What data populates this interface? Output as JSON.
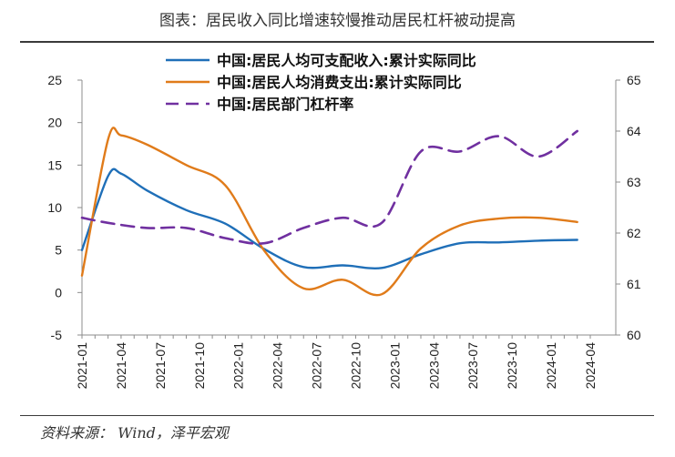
{
  "figure_title": "图表：居民收入同比增速较慢推动居民杠杆被动提高",
  "source_note": "资料来源： Wind，泽平宏观",
  "chart_data": {
    "type": "line",
    "title": "图表：居民收入同比增速较慢推动居民杠杆被动提高",
    "x": [
      "2021-01",
      "2021-02",
      "2021-03",
      "2021-04",
      "2021-05",
      "2021-06",
      "2021-07",
      "2021-08",
      "2021-09",
      "2021-10",
      "2021-11",
      "2021-12",
      "2022-01",
      "2022-02",
      "2022-03",
      "2022-04",
      "2022-05",
      "2022-06",
      "2022-07",
      "2022-08",
      "2022-09",
      "2022-10",
      "2022-11",
      "2022-12",
      "2023-01",
      "2023-02",
      "2023-03",
      "2023-04",
      "2023-05",
      "2023-06",
      "2023-07",
      "2023-08",
      "2023-09",
      "2023-10",
      "2023-11",
      "2023-12",
      "2024-01",
      "2024-02",
      "2024-03",
      "2024-04"
    ],
    "x_tick_labels": [
      "2021-01",
      "2021-04",
      "2021-07",
      "2021-10",
      "2022-01",
      "2022-04",
      "2022-07",
      "2022-10",
      "2023-01",
      "2023-04",
      "2023-07",
      "2023-10",
      "2024-01",
      "2024-04"
    ],
    "left_axis": {
      "ylim": [
        -5,
        25
      ],
      "ticks": [
        -5,
        0,
        5,
        10,
        15,
        20,
        25
      ]
    },
    "right_axis": {
      "ylim": [
        60,
        65
      ],
      "ticks": [
        60,
        61,
        62,
        63,
        64,
        65
      ]
    },
    "legend_position": "top-center",
    "grid": false,
    "series": [
      {
        "name": "中国:居民人均可支配收入:累计实际同比",
        "axis": "left",
        "color": "#1f6fb8",
        "dash": "solid",
        "points": [
          [
            "2021-01",
            5.0
          ],
          [
            "2021-03",
            13.7
          ],
          [
            "2021-04",
            14.0
          ],
          [
            "2021-06",
            12.0
          ],
          [
            "2021-09",
            9.7
          ],
          [
            "2021-12",
            8.1
          ],
          [
            "2022-03",
            5.1
          ],
          [
            "2022-06",
            3.0
          ],
          [
            "2022-09",
            3.2
          ],
          [
            "2022-12",
            2.9
          ],
          [
            "2023-03",
            4.5
          ],
          [
            "2023-06",
            5.8
          ],
          [
            "2023-09",
            5.9
          ],
          [
            "2023-12",
            6.1
          ],
          [
            "2024-03",
            6.2
          ]
        ]
      },
      {
        "name": "中国:居民人均消费支出:累计实际同比",
        "axis": "left",
        "color": "#e07b1a",
        "dash": "solid",
        "points": [
          [
            "2021-01",
            2.0
          ],
          [
            "2021-03",
            18.0
          ],
          [
            "2021-04",
            18.5
          ],
          [
            "2021-06",
            17.4
          ],
          [
            "2021-09",
            15.0
          ],
          [
            "2021-12",
            12.6
          ],
          [
            "2022-03",
            4.9
          ],
          [
            "2022-06",
            0.5
          ],
          [
            "2022-09",
            1.5
          ],
          [
            "2022-12",
            -0.2
          ],
          [
            "2023-03",
            5.2
          ],
          [
            "2023-06",
            7.9
          ],
          [
            "2023-09",
            8.7
          ],
          [
            "2023-12",
            8.8
          ],
          [
            "2024-03",
            8.3
          ]
        ]
      },
      {
        "name": "中国:居民部门杠杆率",
        "axis": "right",
        "color": "#7030a0",
        "dash": "dashed",
        "points": [
          [
            "2021-01",
            62.3
          ],
          [
            "2021-03",
            62.2
          ],
          [
            "2021-06",
            62.1
          ],
          [
            "2021-09",
            62.1
          ],
          [
            "2021-12",
            61.9
          ],
          [
            "2022-03",
            61.8
          ],
          [
            "2022-06",
            62.1
          ],
          [
            "2022-09",
            62.3
          ],
          [
            "2022-12",
            62.2
          ],
          [
            "2023-03",
            63.6
          ],
          [
            "2023-06",
            63.6
          ],
          [
            "2023-09",
            63.9
          ],
          [
            "2023-12",
            63.5
          ],
          [
            "2024-03",
            64.0
          ]
        ]
      }
    ]
  }
}
